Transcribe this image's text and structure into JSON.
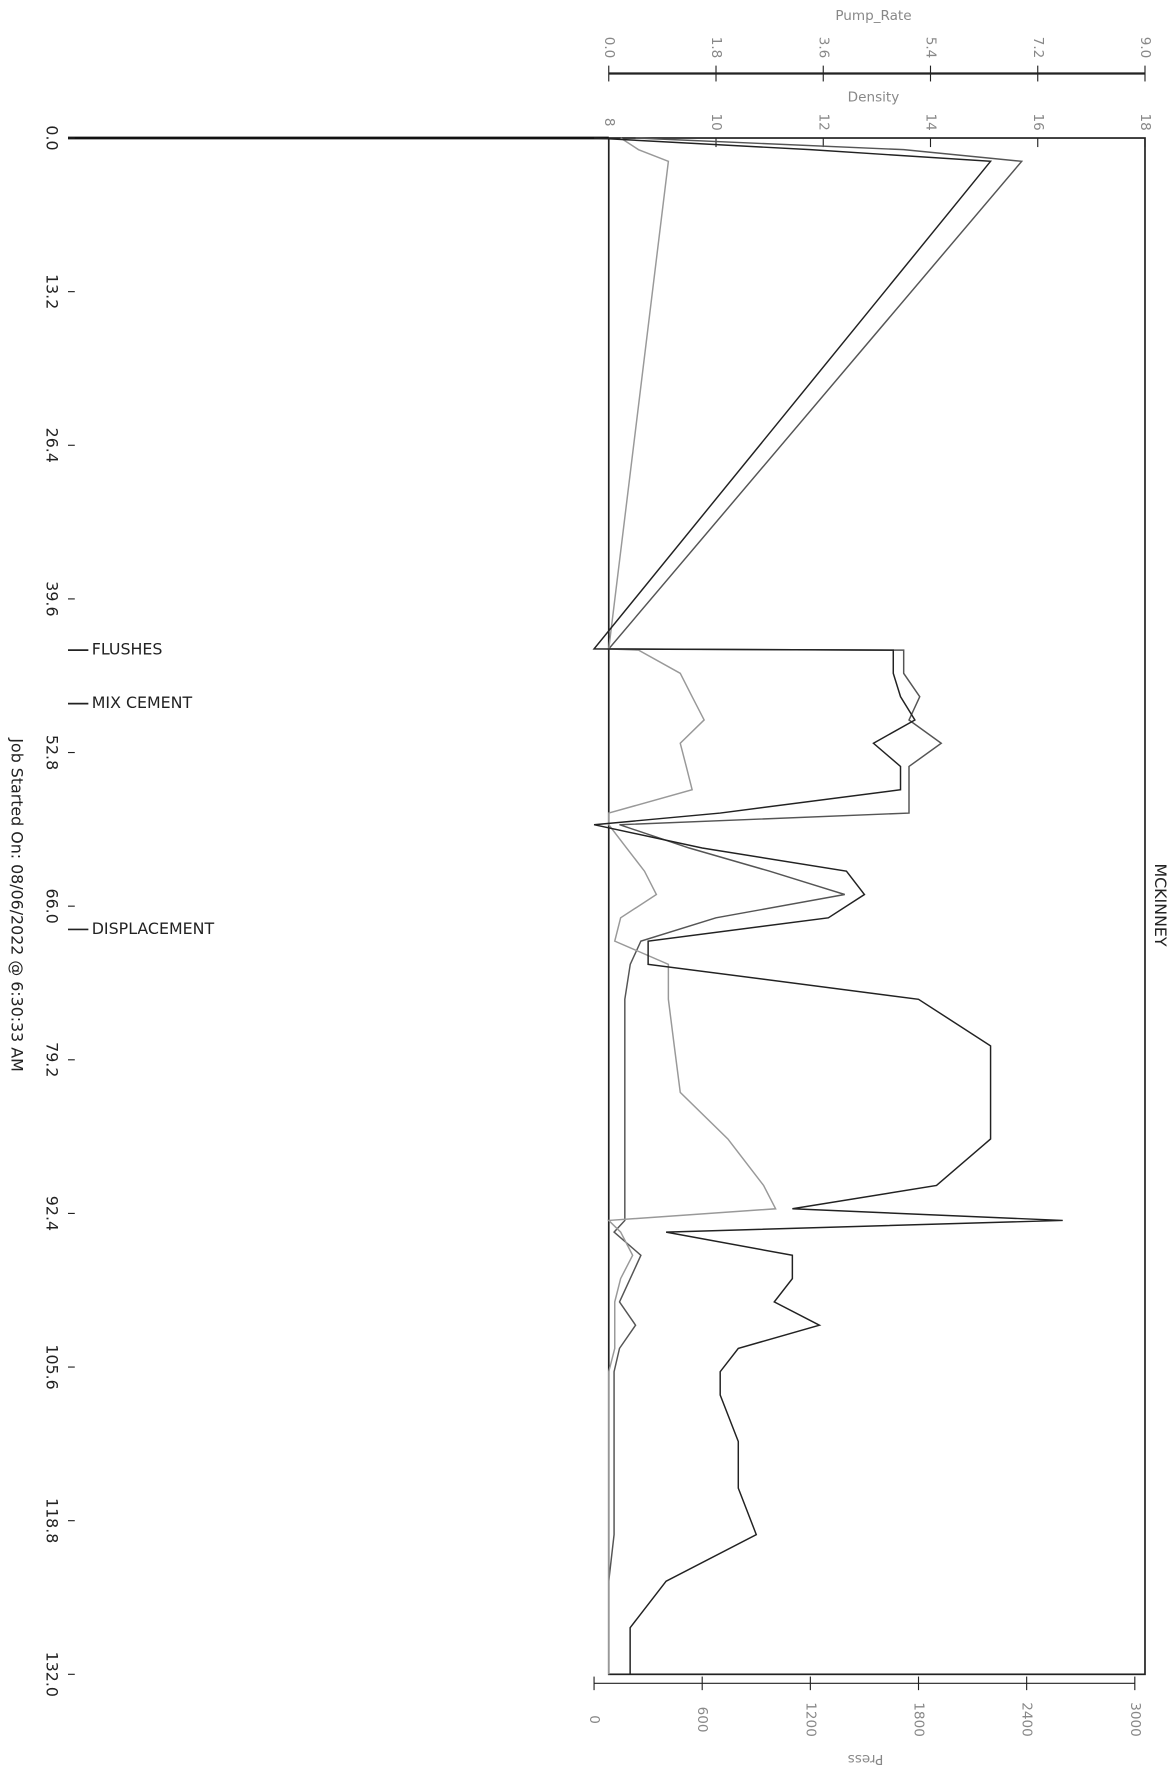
{
  "chart_data": {
    "type": "line",
    "title": "MCKINNEY",
    "footnote": "Job Started On: 08/06/2022 @ 6:30:33 AM",
    "x": [
      0,
      1,
      2,
      43.9,
      44,
      46,
      48,
      50,
      52,
      54,
      56,
      58,
      59,
      61,
      63,
      65,
      67,
      69,
      71,
      74,
      78,
      82,
      86,
      90,
      92,
      93,
      94,
      96,
      98,
      100,
      102,
      104,
      106,
      108,
      112,
      116,
      120,
      124,
      128,
      132
    ],
    "xlim": [
      0,
      132
    ],
    "xticks": [
      {
        "value": 0,
        "label": "0.0"
      },
      13.2,
      26.4,
      39.6,
      52.8,
      {
        "value": 66,
        "label": "66.0"
      },
      79.2,
      92.4,
      105.6,
      118.8,
      {
        "value": 132,
        "label": "132.0"
      }
    ],
    "y_label": "Density",
    "ylim": [
      8,
      18
    ],
    "yticks": [
      8,
      10,
      12,
      14,
      16,
      18
    ],
    "y2_label": "Pump_Rate",
    "y2lim": [
      0,
      9
    ],
    "y2ticks": [
      {
        "value": 0,
        "label": "0.0"
      },
      1.8,
      3.6,
      5.4,
      7.2,
      {
        "value": 9,
        "label": "9.0"
      }
    ],
    "y3_label": "Press",
    "y3lim": [
      0,
      3000
    ],
    "y3ticks": [
      0,
      600,
      1200,
      1800,
      2400,
      3000
    ],
    "annotations": [
      {
        "x": 44,
        "text": "FLUSHES"
      },
      {
        "x": 48.6,
        "text": "MIX CEMENT"
      },
      {
        "x": 68,
        "text": "DISPLACEMENT"
      }
    ],
    "series": [
      {
        "name": "Density",
        "color": "#555555",
        "axis": "y",
        "values": [
          8.5,
          13.5,
          15.7,
          8.0,
          13.5,
          13.5,
          13.8,
          13.6,
          14.2,
          13.6,
          13.6,
          13.6,
          8.2,
          9.5,
          11,
          12.4,
          10,
          8.6,
          8.4,
          8.3,
          8.3,
          8.3,
          8.3,
          8.3,
          8.3,
          8.3,
          8.1,
          8.6,
          8.4,
          8.2,
          8.5,
          8.2,
          8.1,
          8.1,
          8.1,
          8.1,
          8.1,
          8.0,
          8.0,
          8.0
        ]
      },
      {
        "name": "Pump_Rate",
        "color": "#999999",
        "axis": "y2",
        "values": [
          0.2,
          0.5,
          1.0,
          0,
          0.5,
          1.2,
          1.4,
          1.6,
          1.2,
          1.3,
          1.4,
          0,
          0,
          0.3,
          0.6,
          0.8,
          0.2,
          0.1,
          1.0,
          1.0,
          1.1,
          1.2,
          2.0,
          2.6,
          2.8,
          0,
          0.2,
          0.4,
          0.2,
          0.1,
          0.1,
          0.1,
          0,
          0,
          0,
          0,
          0,
          0,
          0,
          0
        ]
      },
      {
        "name": "Press",
        "color": "#222222",
        "axis": "y3",
        "values": [
          0,
          1200,
          2200,
          0,
          1660,
          1660,
          1700,
          1780,
          1550,
          1700,
          1700,
          700,
          0,
          600,
          1400,
          1500,
          1300,
          300,
          300,
          1800,
          2200,
          2200,
          2200,
          1900,
          1100,
          2600,
          400,
          1100,
          1100,
          1000,
          1250,
          800,
          700,
          700,
          800,
          800,
          900,
          400,
          200,
          200
        ]
      }
    ]
  }
}
